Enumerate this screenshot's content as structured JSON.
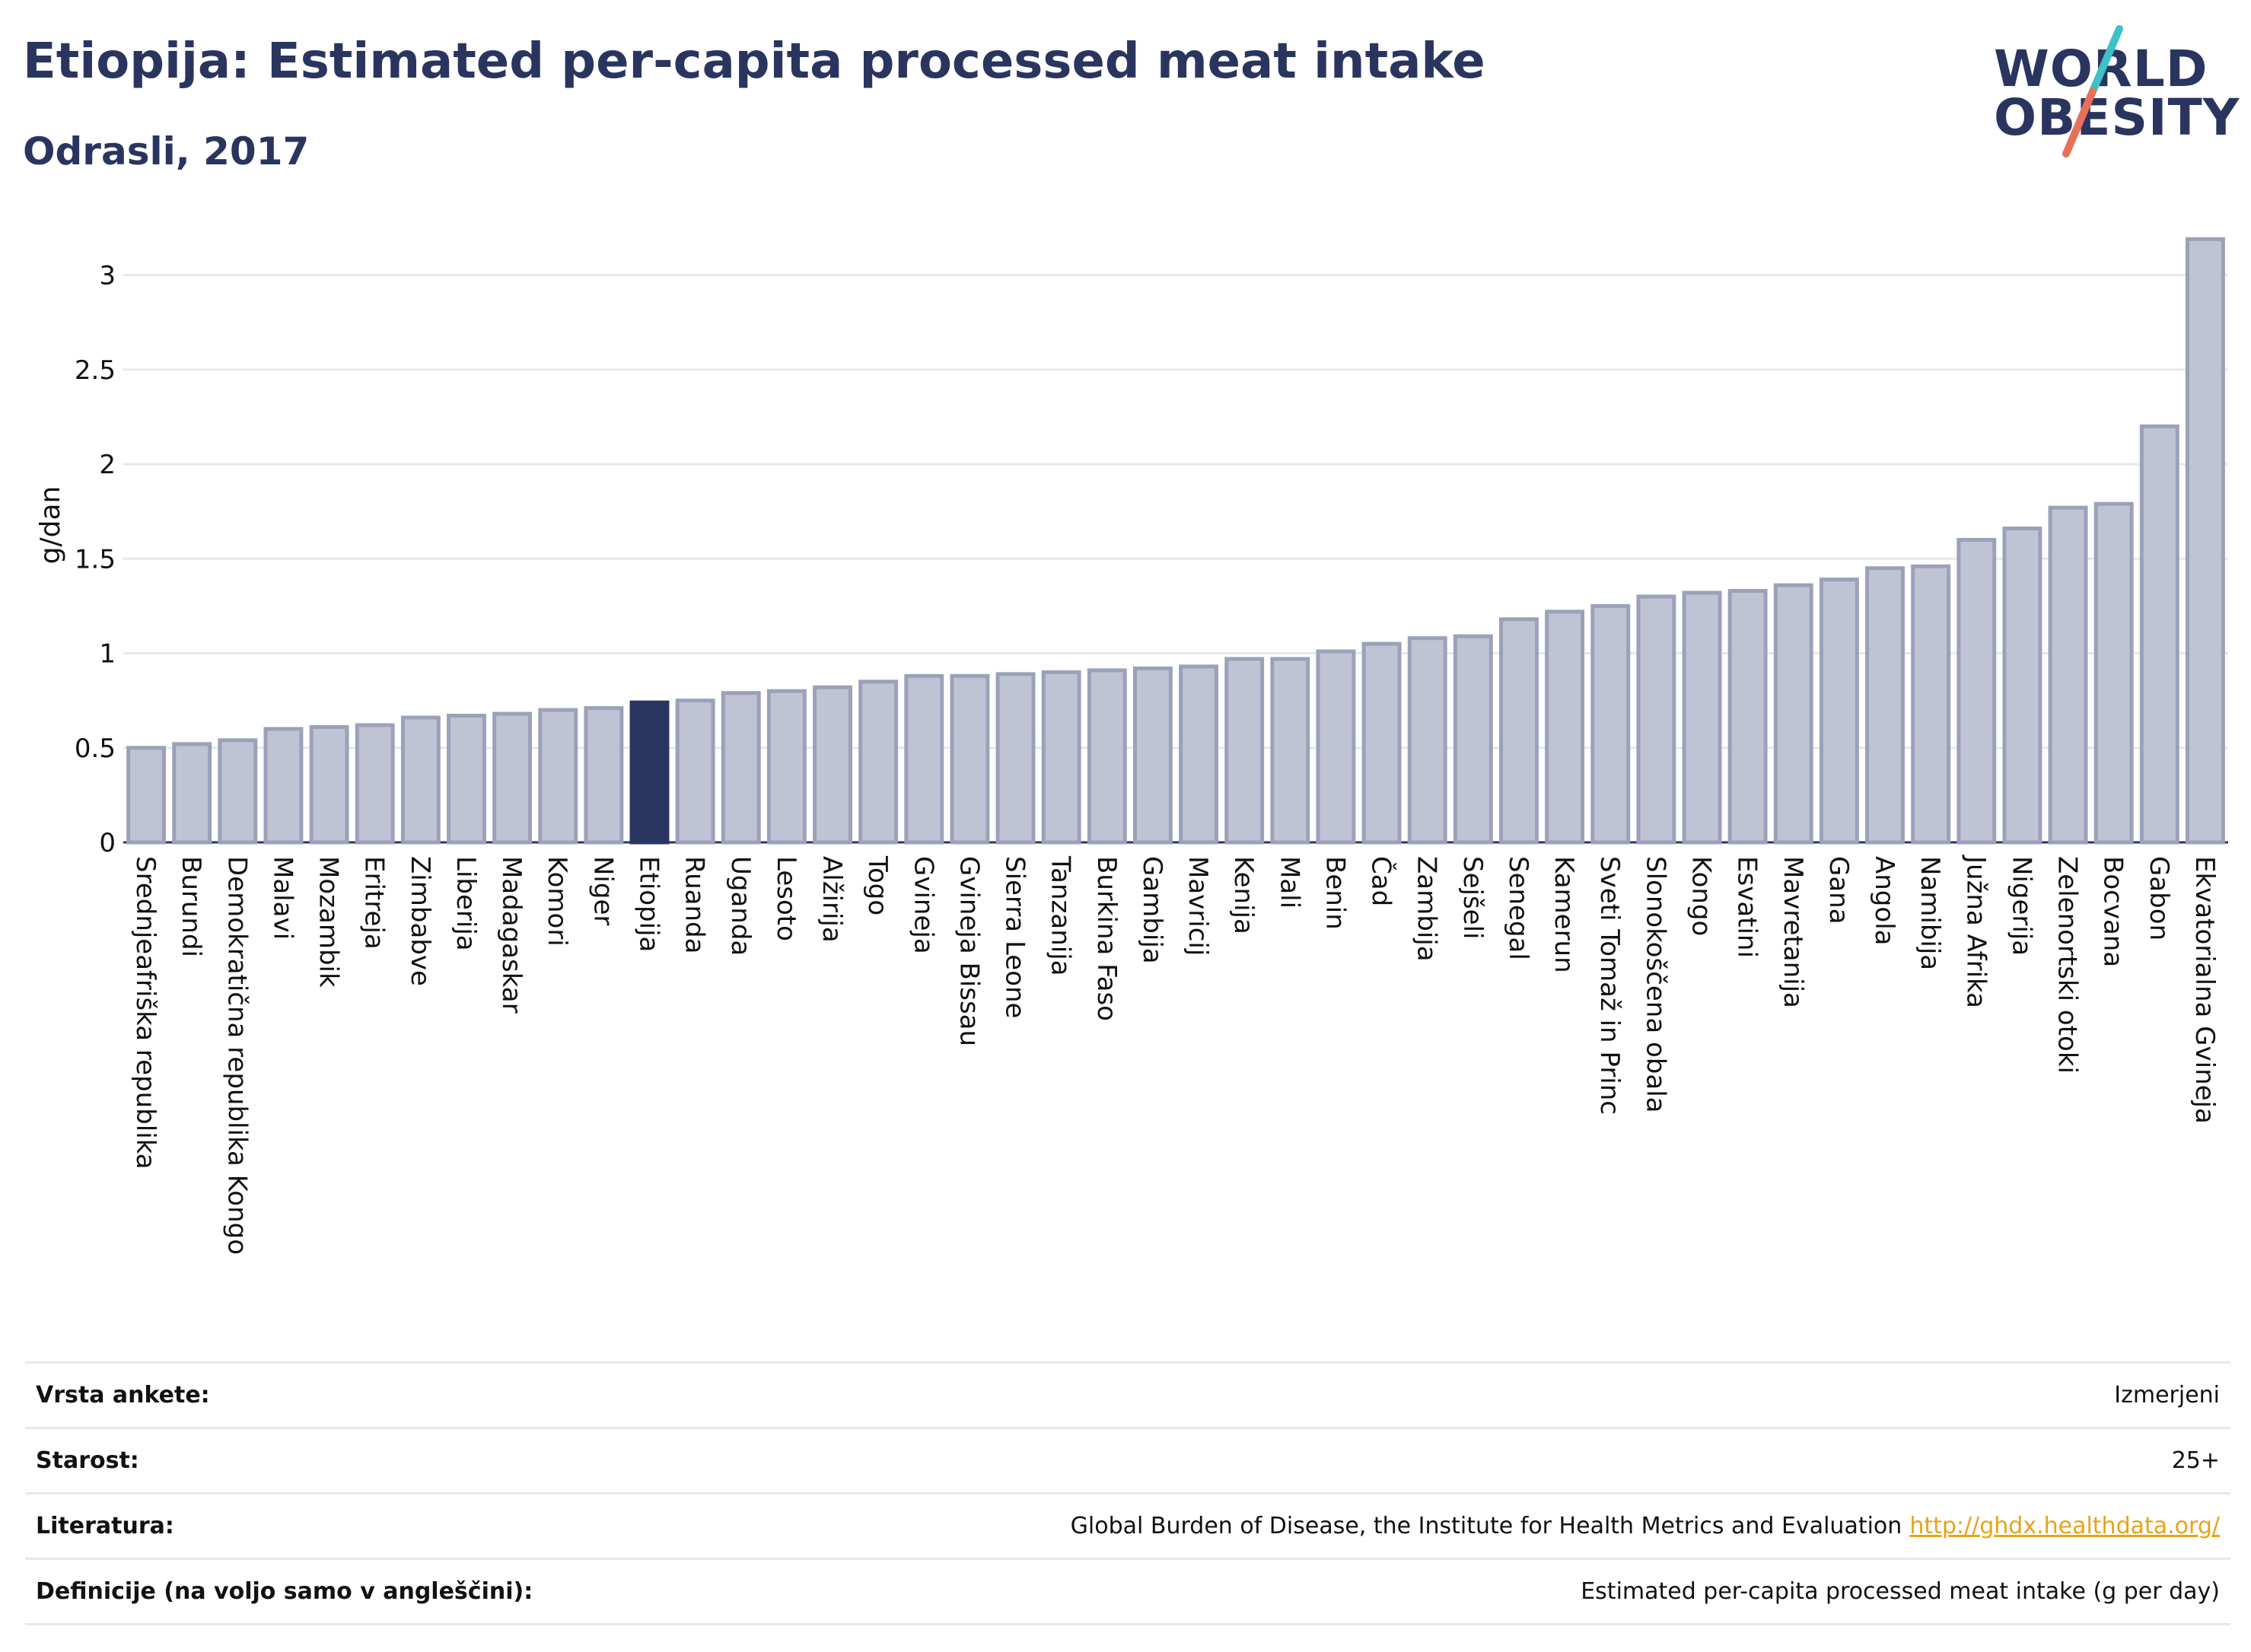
{
  "header": {
    "title": "Etiopija: Estimated per-capita processed meat intake",
    "subtitle": "Odrasli, 2017"
  },
  "logo": {
    "line1": "WORLD",
    "line2": "OBESITY",
    "slash_colors": [
      "#3ec1c9",
      "#e8705a"
    ]
  },
  "colors": {
    "bar_fill": "#bfc3d3",
    "bar_stroke": "#9ba1b9",
    "highlight": "#2a355f",
    "grid": "#e6e8ee"
  },
  "chart_data": {
    "type": "bar",
    "ylabel": "g/dan",
    "ylim": [
      0,
      3.3
    ],
    "yticks": [
      0,
      0.5,
      1,
      1.5,
      2,
      2.5,
      3
    ],
    "ytick_labels": [
      "0",
      "0.5",
      "1",
      "1.5",
      "2",
      "2.5",
      "3"
    ],
    "grid": true,
    "highlight": "Etiopija",
    "categories": [
      "Srednjeafriška republika",
      "Burundi",
      "Demokratična republika Kongo",
      "Malavi",
      "Mozambik",
      "Eritreja",
      "Zimbabve",
      "Liberija",
      "Madagaskar",
      "Komori",
      "Niger",
      "Etiopija",
      "Ruanda",
      "Uganda",
      "Lesoto",
      "Alžirija",
      "Togo",
      "Gvineja",
      "Gvineja Bissau",
      "Sierra Leone",
      "Tanzanija",
      "Burkina Faso",
      "Gambija",
      "Mavricij",
      "Kenija",
      "Mali",
      "Benin",
      "Čad",
      "Zambija",
      "Sejšeli",
      "Senegal",
      "Kamerun",
      "Sveti Tomaž in Princ",
      "Slonokoščena obala",
      "Kongo",
      "Esvatini",
      "Mavretanija",
      "Gana",
      "Angola",
      "Namibija",
      "Južna Afrika",
      "Nigerija",
      "Zelenortski otoki",
      "Bocvana",
      "Gabon",
      "Ekvatorialna Gvineja"
    ],
    "values": [
      0.5,
      0.52,
      0.54,
      0.6,
      0.61,
      0.62,
      0.66,
      0.67,
      0.68,
      0.7,
      0.71,
      0.74,
      0.75,
      0.79,
      0.8,
      0.82,
      0.85,
      0.88,
      0.88,
      0.89,
      0.9,
      0.91,
      0.92,
      0.93,
      0.97,
      0.97,
      1.01,
      1.05,
      1.08,
      1.09,
      1.18,
      1.22,
      1.25,
      1.3,
      1.32,
      1.33,
      1.36,
      1.39,
      1.45,
      1.46,
      1.6,
      1.66,
      1.77,
      1.79,
      2.2,
      3.19
    ]
  },
  "info": {
    "rows": [
      {
        "label": "Vrsta ankete:",
        "value": "Izmerjeni"
      },
      {
        "label": "Starost:",
        "value": "25+"
      },
      {
        "label": "Literatura:",
        "value": "Global Burden of Disease, the Institute for Health Metrics and Evaluation",
        "link": "http://ghdx.healthdata.org/"
      },
      {
        "label": "Definicije (na voljo samo v angleščini):",
        "value": "Estimated per-capita processed meat intake (g per day)"
      }
    ]
  }
}
